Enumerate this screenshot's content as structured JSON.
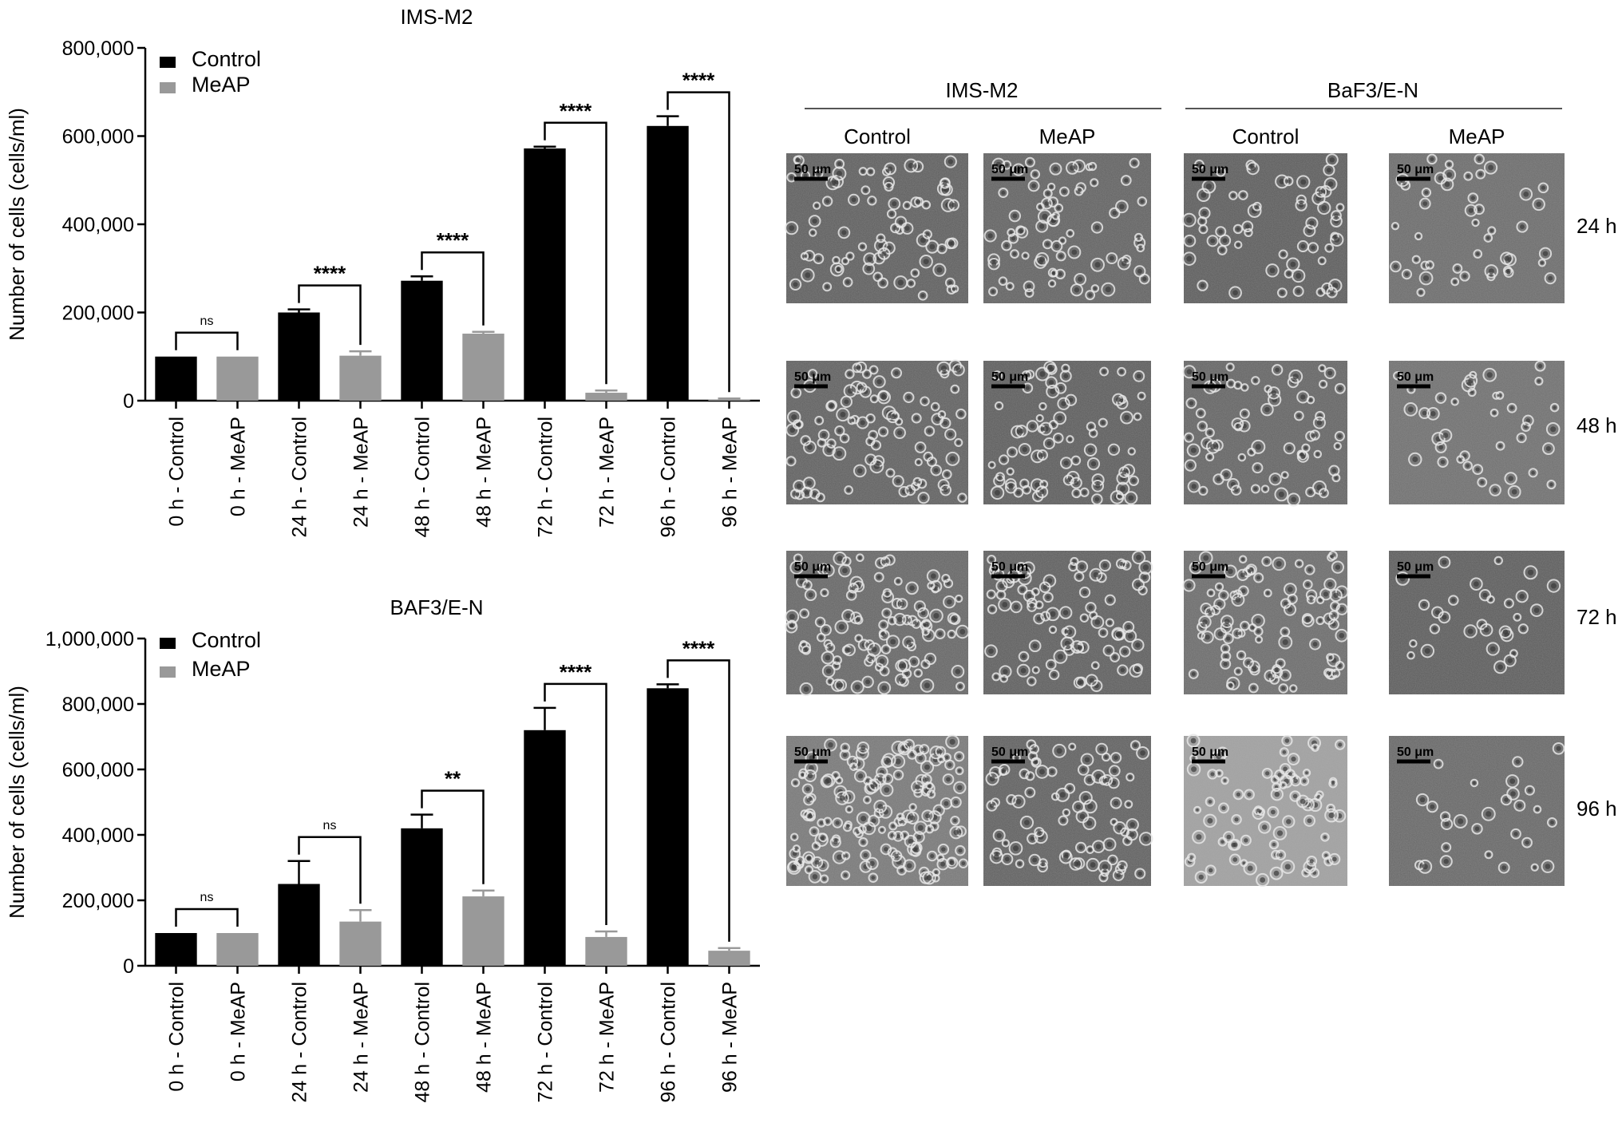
{
  "chart_data": [
    {
      "type": "bar",
      "title": "IMS-M2",
      "ylabel": "Number of cells (cells/ml)",
      "ylim": [
        0,
        800000
      ],
      "yticks": [
        0,
        200000,
        400000,
        600000,
        800000
      ],
      "ytick_labels": [
        "0",
        "200,000",
        "400,000",
        "600,000",
        "800,000"
      ],
      "categories": [
        "0 h - Control",
        "0 h - MeAP",
        "24 h - Control",
        "24 h - MeAP",
        "48 h - Control",
        "48 h - MeAP",
        "72 h - Control",
        "72 h - MeAP",
        "96 h - Control",
        "96 h - MeAP"
      ],
      "values": [
        100000,
        100000,
        200000,
        102000,
        272000,
        152000,
        572000,
        18000,
        623000,
        3000
      ],
      "errors": [
        0,
        0,
        7000,
        10000,
        10000,
        4000,
        4000,
        5000,
        22000,
        2000
      ],
      "groups": [
        "Control",
        "MeAP",
        "Control",
        "MeAP",
        "Control",
        "MeAP",
        "Control",
        "MeAP",
        "Control",
        "MeAP"
      ],
      "legend": [
        {
          "name": "Control",
          "color": "#000000"
        },
        {
          "name": "MeAP",
          "color": "#999999"
        }
      ],
      "legend_position": "top-left",
      "significance": [
        {
          "pair": [
            0,
            1
          ],
          "label": "ns"
        },
        {
          "pair": [
            2,
            3
          ],
          "label": "****"
        },
        {
          "pair": [
            4,
            5
          ],
          "label": "****"
        },
        {
          "pair": [
            6,
            7
          ],
          "label": "****"
        },
        {
          "pair": [
            8,
            9
          ],
          "label": "****"
        }
      ]
    },
    {
      "type": "bar",
      "title": "BAF3/E-N",
      "ylabel": "Number of cells (cells/ml)",
      "ylim": [
        0,
        1000000
      ],
      "yticks": [
        0,
        200000,
        400000,
        600000,
        800000,
        1000000
      ],
      "ytick_labels": [
        "0",
        "200,000",
        "400,000",
        "600,000",
        "800,000",
        "1,000,000"
      ],
      "categories": [
        "0 h - Control",
        "0 h - MeAP",
        "24 h - Control",
        "24 h - MeAP",
        "48 h - Control",
        "48 h - MeAP",
        "72 h - Control",
        "72 h - MeAP",
        "96 h - Control",
        "96 h - MeAP"
      ],
      "values": [
        100000,
        100000,
        250000,
        135000,
        420000,
        212000,
        720000,
        88000,
        848000,
        46000
      ],
      "errors": [
        0,
        0,
        70000,
        35000,
        42000,
        18000,
        68000,
        17000,
        12000,
        8000
      ],
      "groups": [
        "Control",
        "MeAP",
        "Control",
        "MeAP",
        "Control",
        "MeAP",
        "Control",
        "MeAP",
        "Control",
        "MeAP"
      ],
      "legend": [
        {
          "name": "Control",
          "color": "#000000"
        },
        {
          "name": "MeAP",
          "color": "#999999"
        }
      ],
      "legend_position": "top-left",
      "significance": [
        {
          "pair": [
            0,
            1
          ],
          "label": "ns"
        },
        {
          "pair": [
            2,
            3
          ],
          "label": "ns"
        },
        {
          "pair": [
            4,
            5
          ],
          "label": "**"
        },
        {
          "pair": [
            6,
            7
          ],
          "label": "****"
        },
        {
          "pair": [
            8,
            9
          ],
          "label": "****"
        }
      ]
    }
  ],
  "micrographs": {
    "groups": [
      "IMS-M2",
      "BaF3/E-N"
    ],
    "conditions": [
      "Control",
      "MeAP",
      "Control",
      "MeAP"
    ],
    "times": [
      "24 h",
      "48 h",
      "72 h",
      "96 h"
    ],
    "scale_bar_label": "50 μm"
  }
}
